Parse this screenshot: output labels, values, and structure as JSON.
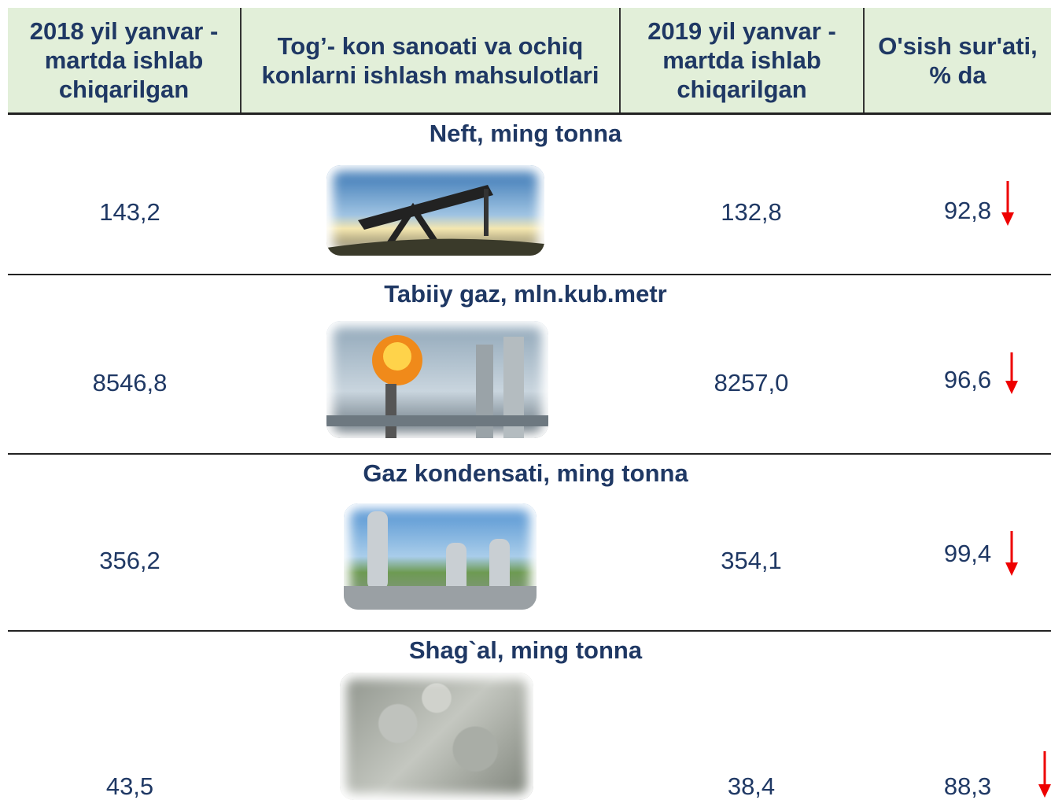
{
  "header": {
    "columns": [
      "2018 yil yanvar - martda ishlab chiqarilgan",
      "Tog’- kon sanoati va ochiq konlarni ishlash mahsulotlari",
      "2019 yil yanvar - martda ishlab chiqarilgan",
      "O'sish sur'ati, % da"
    ]
  },
  "rows": [
    {
      "title": "Neft, ming tonna",
      "v2018": "143,2",
      "v2019": "132,8",
      "growth": "92,8"
    },
    {
      "title": "Tabiiy gaz, mln.kub.metr",
      "v2018": "8546,8",
      "v2019": "8257,0",
      "growth": "96,6"
    },
    {
      "title": "Gaz kondensati, ming tonna",
      "v2018": "356,2",
      "v2019": "354,1",
      "growth": "99,4"
    },
    {
      "title": "Shag`al, ming tonna",
      "v2018": "43,5",
      "v2019": "38,4",
      "growth": "88,3"
    }
  ]
}
